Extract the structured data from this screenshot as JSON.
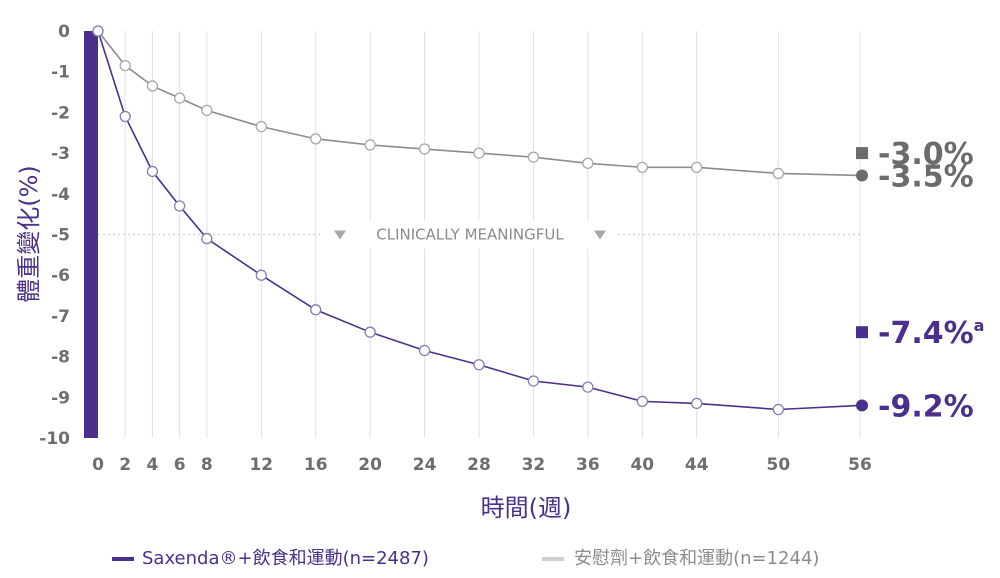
{
  "colors": {
    "saxenda": "#4b2f8c",
    "placebo": "#8c8c8c",
    "placebo_legend": "#cfcfcf",
    "grid": "#e0e0e0",
    "tick_text": "#6e6e6e"
  },
  "chart_data": {
    "type": "line",
    "xlabel": "時間(週)",
    "ylabel": "體重變化(%)",
    "x": [
      0,
      2,
      4,
      6,
      8,
      12,
      16,
      20,
      24,
      28,
      32,
      36,
      40,
      44,
      50,
      56
    ],
    "xlim": [
      0,
      56
    ],
    "ylim": [
      -10,
      0
    ],
    "yticks": [
      0,
      -1,
      -2,
      -3,
      -4,
      -5,
      -6,
      -7,
      -8,
      -9,
      -10
    ],
    "grid": "vertical",
    "legend_position": "bottom",
    "series": [
      {
        "name": "Saxenda®+飲食和運動(n=2487)",
        "color": "#4b2f8c",
        "values": [
          0,
          -2.1,
          -3.45,
          -4.3,
          -5.1,
          -6.0,
          -6.85,
          -7.4,
          -7.85,
          -8.2,
          -8.6,
          -8.75,
          -9.1,
          -9.15,
          -9.3,
          -9.2
        ]
      },
      {
        "name": "安慰劑+飲食和運動(n=1244)",
        "color": "#8c8c8c",
        "values": [
          0,
          -0.85,
          -1.35,
          -1.65,
          -1.95,
          -2.35,
          -2.65,
          -2.8,
          -2.9,
          -3.0,
          -3.1,
          -3.25,
          -3.35,
          -3.35,
          -3.5,
          -3.55
        ]
      }
    ],
    "reference_line": {
      "y": -5,
      "label": "CLINICALLY MEANINGFUL"
    },
    "end_labels": [
      {
        "marker": "square",
        "value": -3.0,
        "text": "-3.0%",
        "sup": "",
        "color": "#6b6b6b"
      },
      {
        "marker": "circle",
        "value": -3.55,
        "text": "-3.5%",
        "sup": "",
        "color": "#6b6b6b"
      },
      {
        "marker": "square",
        "value": -7.4,
        "text": "-7.4%",
        "sup": "a",
        "color": "#4b2f8c"
      },
      {
        "marker": "circle",
        "value": -9.2,
        "text": "-9.2%",
        "sup": "",
        "color": "#4b2f8c"
      }
    ]
  },
  "legend": {
    "items": [
      {
        "label": "Saxenda®+飲食和運動(n=2487)",
        "color": "#4b2f8c",
        "text_color": "#4b2f8c"
      },
      {
        "label": "安慰劑+飲食和運動(n=1244)",
        "color": "#cfcfcf",
        "text_color": "#8c8c8c"
      }
    ]
  }
}
